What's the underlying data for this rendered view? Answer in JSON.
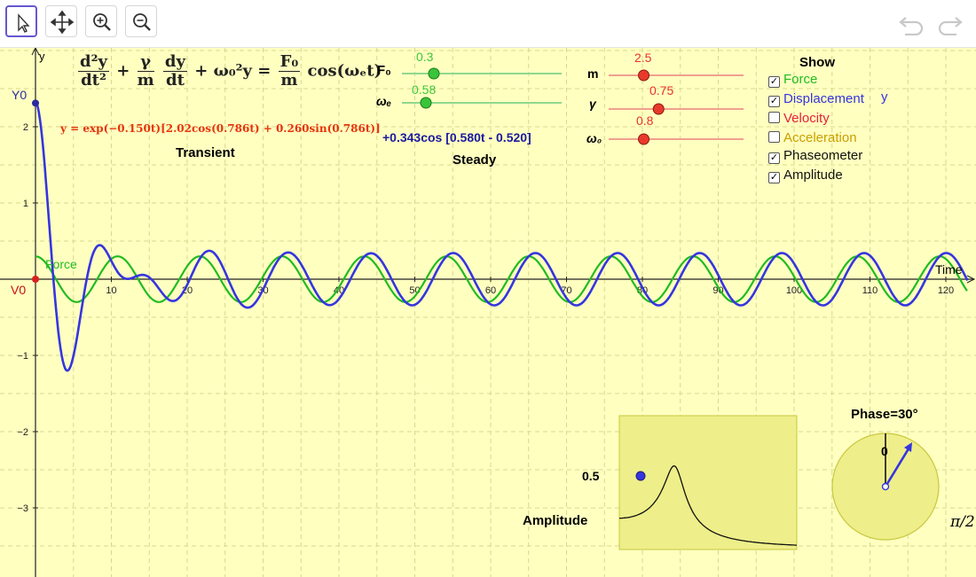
{
  "toolbar": {
    "tools": [
      "select-tool",
      "move-graphics-view",
      "zoom-in",
      "zoom-out"
    ],
    "undo_label": "Undo",
    "redo_label": "Redo"
  },
  "equation": {
    "lhs_frac1_num": "d²y",
    "lhs_frac1_den": "dt²",
    "plus1": "+",
    "gamma_num": "γ",
    "gamma_den": "m",
    "dy_num": "dy",
    "dy_den": "dt",
    "plus2": "+ ω₀²y =",
    "rhs_num": "F₀",
    "rhs_den": "m",
    "rhs_tail": "cos(ωₑt)"
  },
  "transient": {
    "formula": "y = exp(−0.150t)[2.02cos(0.786t) + 0.260sin(0.786t)]",
    "title": "Transient"
  },
  "steady": {
    "formula": "+0.343cos [0.580t - 0.520]",
    "title": "Steady"
  },
  "sliders": {
    "F0": {
      "label": "F₀",
      "value": "0.3",
      "fraction": 0.2
    },
    "we": {
      "label": "ωₑ",
      "value": "0.58",
      "fraction": 0.15
    },
    "m": {
      "label": "m",
      "value": "2.5",
      "fraction": 0.26
    },
    "gamma": {
      "label": "γ",
      "value": "0.75",
      "fraction": 0.37
    },
    "w0": {
      "label": "ω₀",
      "value": "0.8",
      "fraction": 0.26
    }
  },
  "show": {
    "title": "Show",
    "items": [
      {
        "label": "Force",
        "checked": true,
        "color": "#22bb22"
      },
      {
        "label": "Displacement",
        "checked": true,
        "color": "#3535e0"
      },
      {
        "label": "Velocity",
        "checked": false,
        "color": "#e8203a"
      },
      {
        "label": "Acceleration",
        "checked": false,
        "color": "#c8a000"
      },
      {
        "label": "Phaseometer",
        "checked": true,
        "color": "#111111"
      },
      {
        "label": "Amplitude",
        "checked": true,
        "color": "#111111"
      }
    ],
    "displacement_var": "y"
  },
  "axes": {
    "x_title": "Time",
    "y_title": "y",
    "x_ticks": [
      "10",
      "20",
      "30",
      "40",
      "50",
      "60",
      "70",
      "80",
      "90",
      "100",
      "110",
      "120"
    ],
    "y_ticks": [
      "2",
      "1",
      "−1",
      "−2",
      "−3"
    ],
    "y0_label": "Y0",
    "v0_label": "V0",
    "force_label": "Force"
  },
  "amplitude_panel": {
    "title": "Amplitude",
    "value_label": "0.5"
  },
  "phase_panel": {
    "title": "Phase=30°",
    "zero_label": "0",
    "pi_label": "π/2"
  },
  "colors": {
    "background": "#ffffc0",
    "force": "#22bb22",
    "displacement": "#3535e0",
    "transient": "#e8330a",
    "steady": "#1a1aa0",
    "slider_green": "#8fd88f",
    "slider_red": "#f0a090"
  }
}
